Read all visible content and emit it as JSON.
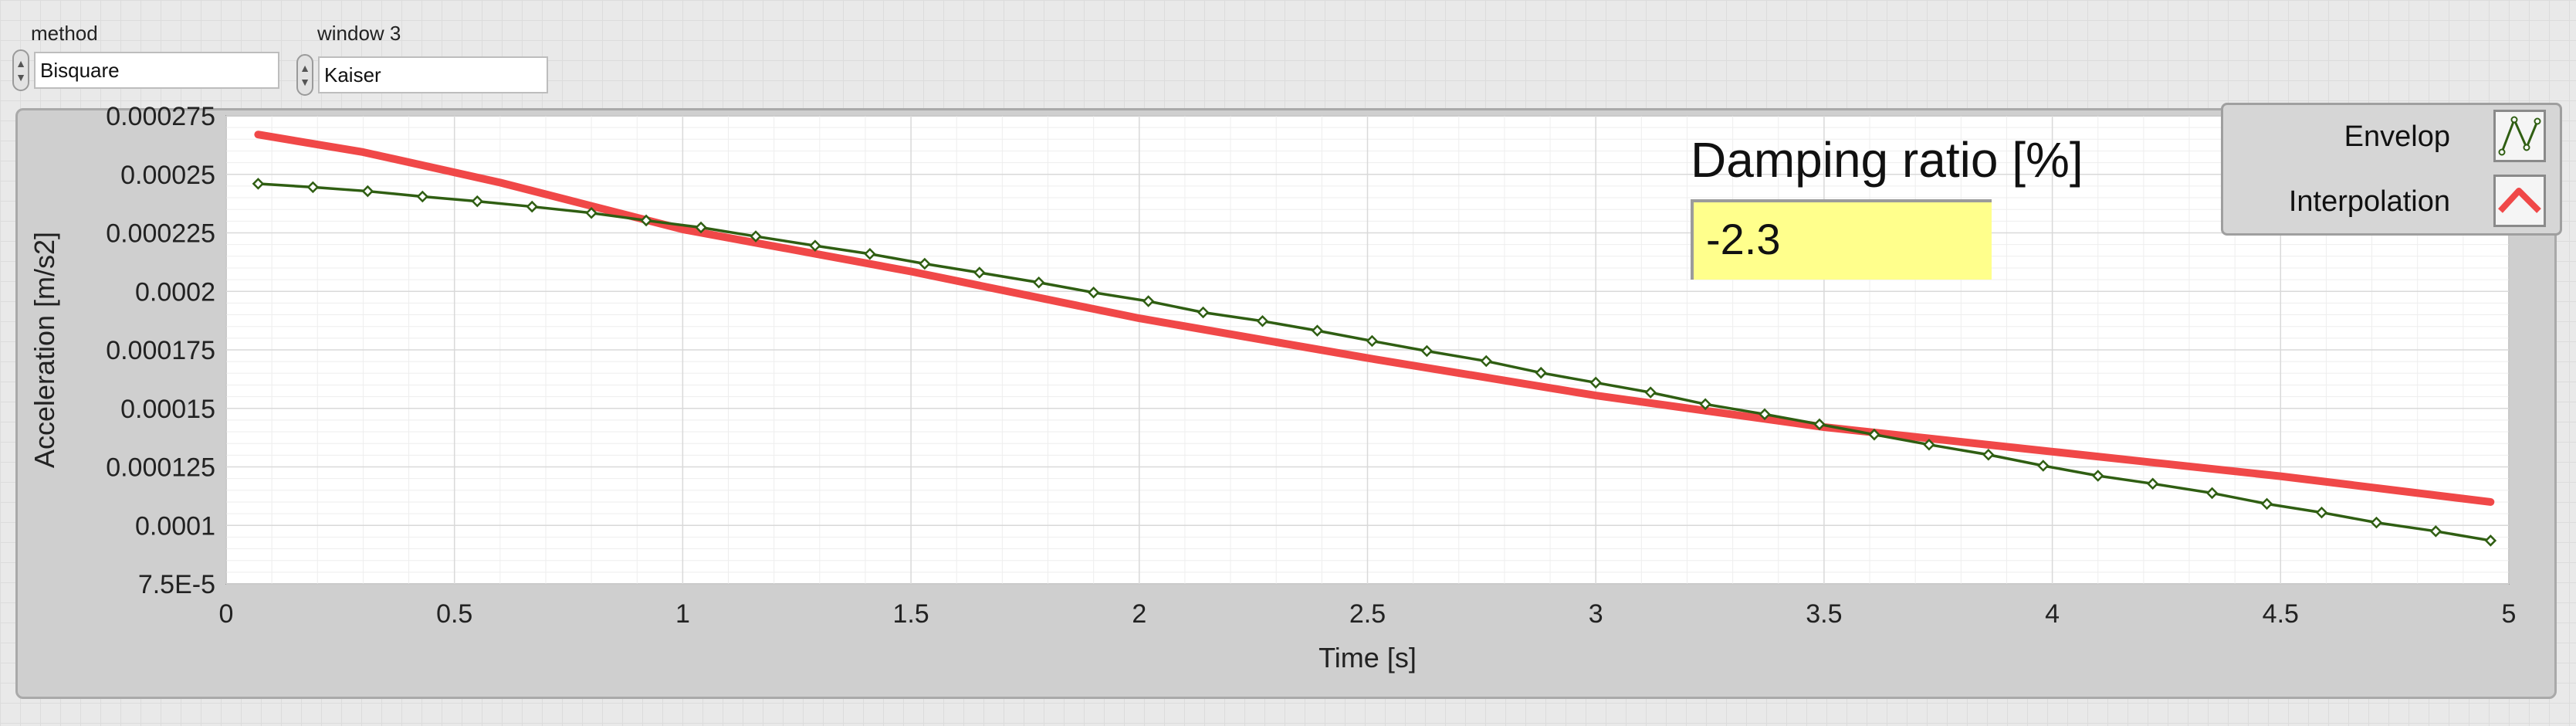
{
  "controls": {
    "method": {
      "label": "method",
      "value": "Bisquare"
    },
    "window": {
      "label": "window 3",
      "value": "Kaiser"
    }
  },
  "damping": {
    "label": "Damping ratio [%]",
    "value": "-2.3"
  },
  "legend": {
    "envelope": "Envelop",
    "interpolation": "Interpolation"
  },
  "colors": {
    "envelope": "#2f5e12",
    "interpolation": "#f04848",
    "damping_bg": "#ffff8c"
  },
  "chart_data": {
    "type": "line",
    "xlabel": "Time [s]",
    "ylabel": "Acceleration [m/s2]",
    "xlim": [
      0,
      5
    ],
    "ylim": [
      7.5e-05,
      0.000275
    ],
    "xticks": [
      0,
      0.5,
      1,
      1.5,
      2,
      2.5,
      3,
      3.5,
      4,
      4.5,
      5
    ],
    "xtick_labels": [
      "0",
      "0.5",
      "1",
      "1.5",
      "2",
      "2.5",
      "3",
      "3.5",
      "4",
      "4.5",
      "5"
    ],
    "yticks": [
      7.5e-05,
      0.0001,
      0.000125,
      0.00015,
      0.000175,
      0.0002,
      0.000225,
      0.00025,
      0.000275
    ],
    "ytick_labels": [
      "7.5E-5",
      "0.0001",
      "0.000125",
      "0.00015",
      "0.000175",
      "0.0002",
      "0.000225",
      "0.00025",
      "0.000275"
    ],
    "grid": true,
    "legend_position": "top-right",
    "series": [
      {
        "name": "Envelop",
        "marker": "diamond",
        "x": [
          0.07,
          0.19,
          0.31,
          0.43,
          0.55,
          0.67,
          0.8,
          0.92,
          1.04,
          1.16,
          1.29,
          1.41,
          1.53,
          1.65,
          1.78,
          1.9,
          2.02,
          2.14,
          2.27,
          2.39,
          2.51,
          2.63,
          2.76,
          2.88,
          3.0,
          3.12,
          3.24,
          3.37,
          3.49,
          3.61,
          3.73,
          3.86,
          3.98,
          4.1,
          4.22,
          4.35,
          4.47,
          4.59,
          4.71,
          4.84,
          4.96
        ],
        "y": [
          0.000246,
          0.0002445,
          0.0002428,
          0.0002405,
          0.0002385,
          0.0002362,
          0.0002335,
          0.0002303,
          0.0002273,
          0.0002235,
          0.0002195,
          0.000216,
          0.0002118,
          0.000208,
          0.0002038,
          0.0001995,
          0.0001958,
          0.000191,
          0.0001873,
          0.0001832,
          0.0001788,
          0.0001745,
          0.0001702,
          0.0001652,
          0.000161,
          0.0001568,
          0.0001518,
          0.0001475,
          0.0001432,
          0.0001388,
          0.0001345,
          0.0001302,
          0.0001255,
          0.0001212,
          0.0001178,
          0.0001138,
          0.0001092,
          0.0001055,
          0.0001012,
          9.75e-05,
          9.35e-05
        ]
      },
      {
        "name": "Interpolation",
        "x": [
          0.07,
          0.3,
          0.6,
          1.0,
          1.5,
          2.0,
          2.5,
          3.0,
          3.5,
          4.0,
          4.5,
          4.96
        ],
        "y": [
          0.000267,
          0.0002595,
          0.0002465,
          0.0002265,
          0.0002085,
          0.0001885,
          0.0001715,
          0.0001555,
          0.000142,
          0.0001315,
          0.000121,
          0.00011
        ]
      }
    ]
  }
}
